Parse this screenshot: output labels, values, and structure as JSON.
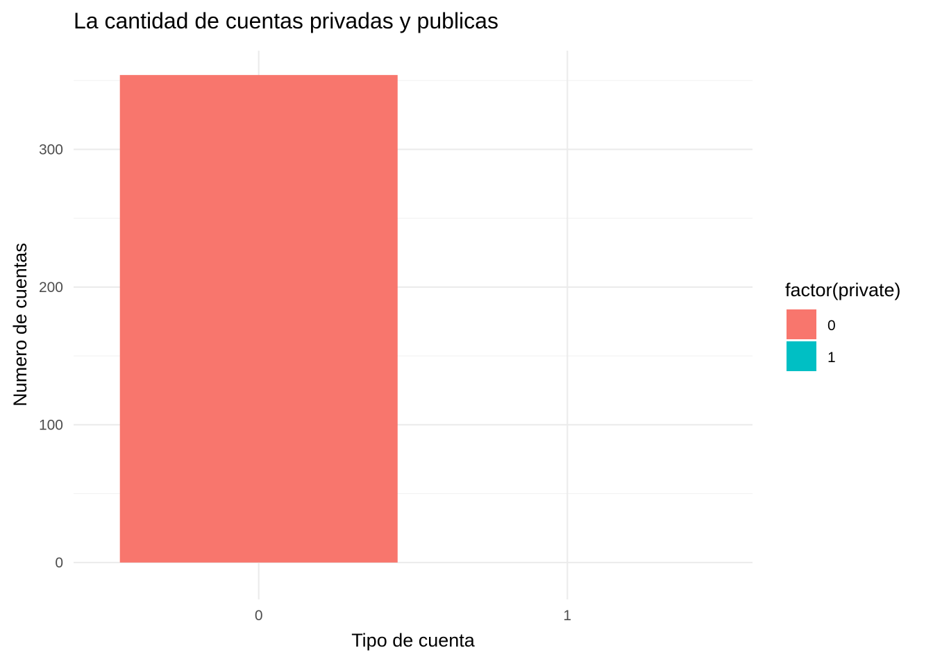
{
  "chart_data": {
    "type": "bar",
    "title": "La cantidad de cuentas privadas y publicas",
    "xlabel": "Tipo de cuenta",
    "ylabel": "Numero de cuentas",
    "categories": [
      "0",
      "1"
    ],
    "values": [
      354,
      0
    ],
    "ylim": [
      -17.7,
      371.7
    ],
    "yticks": [
      0,
      100,
      200,
      300
    ],
    "legend": {
      "title": "factor(private)",
      "position": "right",
      "entries": [
        {
          "label": "0",
          "color": "#F8766D"
        },
        {
          "label": "1",
          "color": "#00BFC4"
        }
      ]
    },
    "colors": [
      "#F8766D",
      "#00BFC4"
    ],
    "grid": true
  }
}
